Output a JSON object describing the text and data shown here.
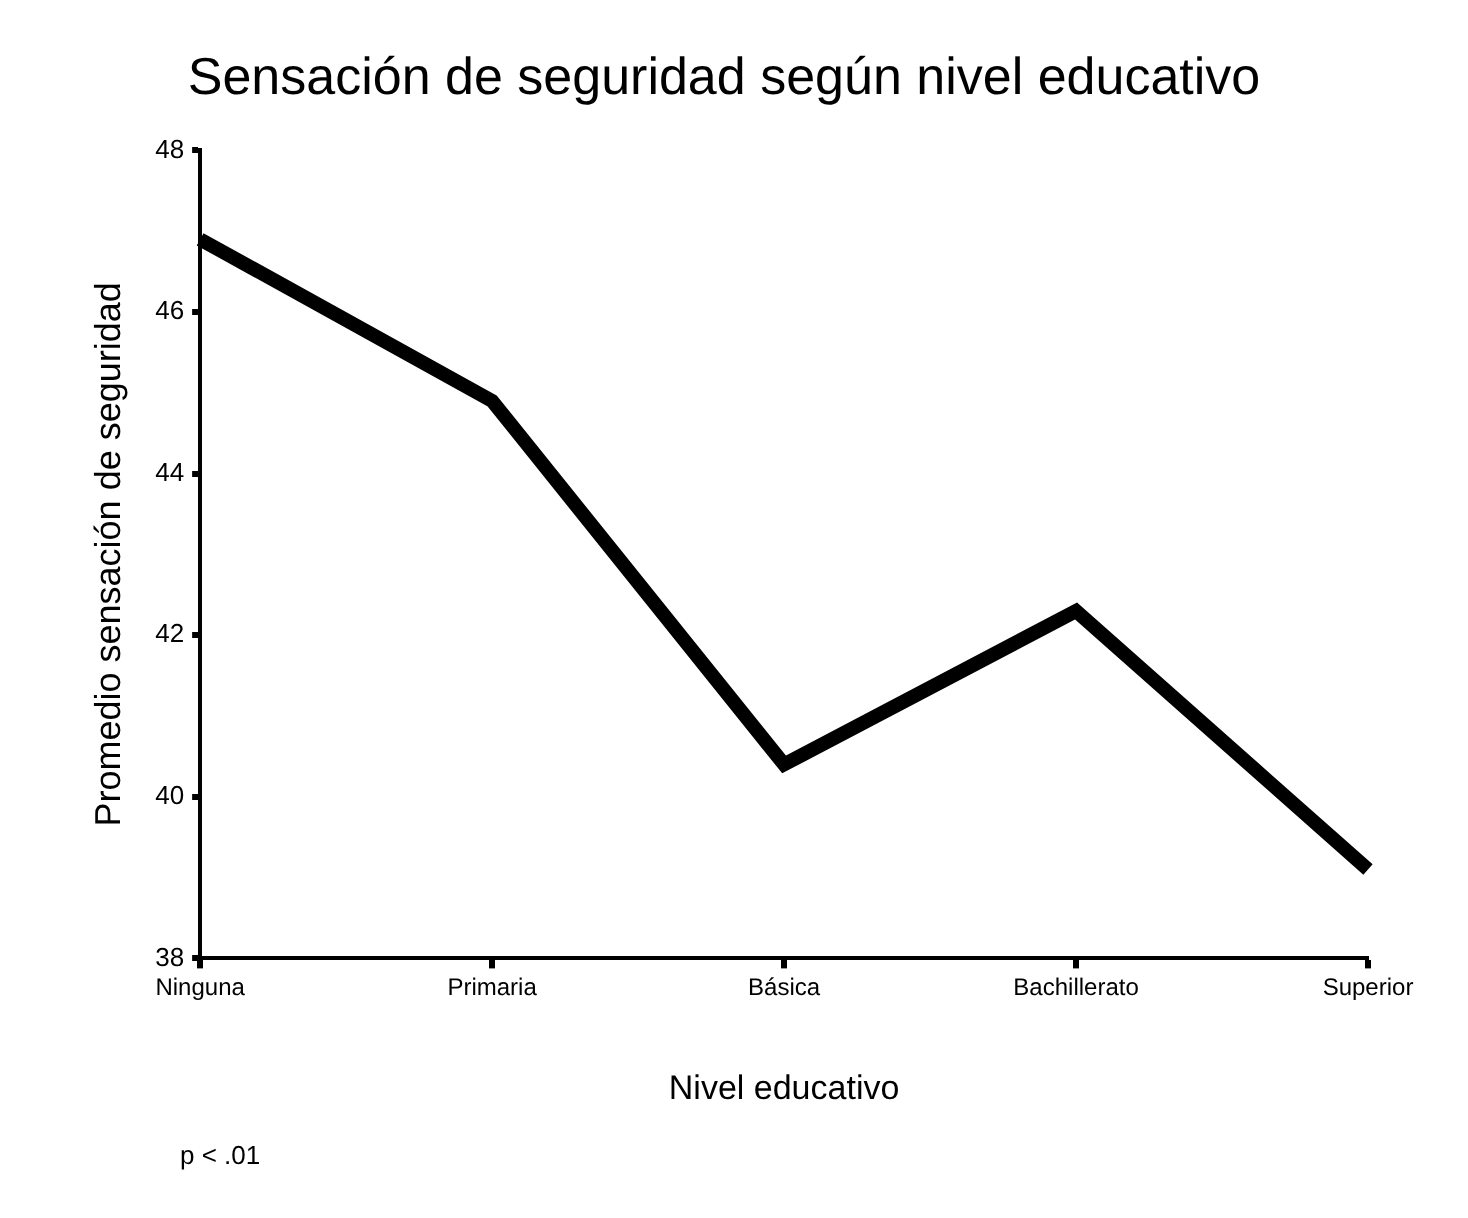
{
  "chart_data": {
    "type": "line",
    "title": "Sensación de seguridad según nivel educativo",
    "xlabel": "Nivel educativo",
    "ylabel": "Promedio sensación de seguridad",
    "categories": [
      "Ninguna",
      "Primaria",
      "Básica",
      "Bachillerato",
      "Superior"
    ],
    "series": [
      {
        "color": "#000000",
        "values": [
          46.9,
          44.9,
          40.4,
          42.3,
          39.1
        ]
      }
    ],
    "ylim": [
      38,
      48
    ],
    "yticks": [
      38,
      40,
      42,
      44,
      46,
      48
    ],
    "grid": false,
    "legend": false,
    "marker": "none",
    "line_style": "solid",
    "annotations": [
      "p < .01"
    ]
  }
}
